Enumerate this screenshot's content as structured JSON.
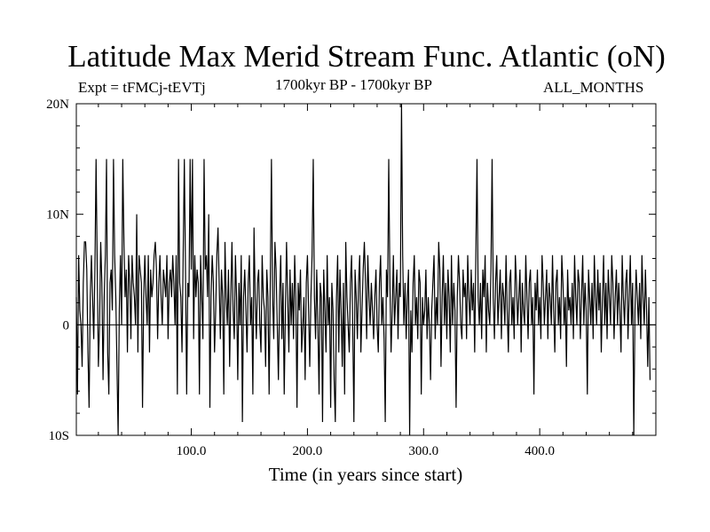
{
  "chart_data": {
    "type": "line",
    "title": "Latitude Max Merid Stream Func. Atlantic (oN)",
    "subtitle_left": "Expt = tFMCj-tEVTj",
    "subtitle_center": "1700kyr BP - 1700kyr BP",
    "subtitle_right": "ALL_MONTHS",
    "xlabel": "Time (in years since start)",
    "ylabel": "",
    "xlim": [
      1,
      500
    ],
    "ylim": [
      -10,
      20
    ],
    "x_ticks": [
      {
        "value": 100,
        "label": "100.0"
      },
      {
        "value": 200,
        "label": "200.0"
      },
      {
        "value": 300,
        "label": "300.0"
      },
      {
        "value": 400,
        "label": "400.0"
      }
    ],
    "y_ticks": [
      {
        "value": -10,
        "label": "10S"
      },
      {
        "value": 0,
        "label": "0"
      },
      {
        "value": 10,
        "label": "10N"
      },
      {
        "value": 20,
        "label": "20N"
      }
    ],
    "zero_line": true,
    "grid": false,
    "series": [
      {
        "name": "",
        "color": "#000000",
        "x_start": 1,
        "x_step": 1,
        "values": [
          2.5,
          -6.3,
          6.3,
          1.3,
          0,
          -3.8,
          3.8,
          7.5,
          7.5,
          5,
          -2.5,
          -7.5,
          2.5,
          6.3,
          2.5,
          -1.3,
          5,
          15,
          5,
          -3.8,
          0,
          7.5,
          3.8,
          -5,
          2.5,
          6.3,
          15,
          -2.5,
          -6.3,
          3.8,
          5,
          1.3,
          15,
          6.3,
          2.5,
          -3.8,
          -10,
          1.3,
          6.3,
          0,
          15,
          7.5,
          2.5,
          5,
          -2.5,
          6.3,
          3.8,
          -1.3,
          6.3,
          3.8,
          2.5,
          0,
          10,
          -2.5,
          6.3,
          5,
          3.8,
          -7.5,
          2.5,
          6.3,
          2.5,
          0,
          6.3,
          -2.5,
          5,
          2.5,
          3.8,
          6.3,
          7.5,
          5,
          -1.3,
          3.8,
          6.3,
          2.5,
          0,
          5,
          3.8,
          2.5,
          6.3,
          -1.3,
          3.8,
          5,
          2.5,
          6.3,
          3.8,
          0,
          6.3,
          -6.3,
          15,
          3.8,
          2.5,
          -2.5,
          6.3,
          15,
          5,
          -6.3,
          3.8,
          2.5,
          15,
          5,
          15,
          -1.3,
          6.3,
          2.5,
          5,
          3.8,
          -6.3,
          6.3,
          2.5,
          -1.3,
          15,
          5,
          6.3,
          2.5,
          10,
          -7.5,
          2.5,
          6.3,
          3.8,
          -2.5,
          1.3,
          6.3,
          8.8,
          3.8,
          -1.3,
          5,
          2.5,
          -6.3,
          7.5,
          2.5,
          0,
          5,
          -3.8,
          2.5,
          7.5,
          1.3,
          -1.3,
          6.3,
          2.5,
          -5,
          3.8,
          0,
          6.3,
          -8.8,
          2.5,
          5,
          1.3,
          -2.5,
          3.8,
          6.3,
          0,
          2.5,
          -6.3,
          8.8,
          2.5,
          -1.3,
          3.8,
          5,
          0,
          -2.5,
          6.3,
          2.5,
          1.3,
          -3.8,
          5,
          2.5,
          -6.3,
          3.8,
          15,
          2.5,
          -1.3,
          7.5,
          5,
          0,
          -5,
          2.5,
          6.3,
          -1.3,
          3.8,
          -6.3,
          1.3,
          7.5,
          2.5,
          -2.5,
          5,
          0,
          3.8,
          -1.3,
          6.3,
          2.5,
          -7.5,
          3.8,
          1.3,
          5,
          -2.5,
          0,
          2.5,
          -5,
          3.8,
          6.3,
          1.3,
          -3.8,
          2.5,
          6.3,
          15,
          2.5,
          -1.3,
          5,
          0,
          -6.3,
          3.8,
          2.5,
          -8.8,
          5,
          1.3,
          -2.5,
          6.3,
          0,
          2.5,
          -7.5,
          3.8,
          1.3,
          -5,
          -8.8,
          2.5,
          6.3,
          -2.5,
          5,
          1.3,
          -3.8,
          3.8,
          -6.3,
          7.5,
          2.5,
          0,
          -2.5,
          3.8,
          6.3,
          0,
          -8.8,
          5,
          2.5,
          -1.3,
          3.8,
          6.3,
          -2.5,
          1.3,
          5,
          7.5,
          3.8,
          -1.3,
          6.3,
          2.5,
          0,
          3.8,
          1.3,
          -1.3,
          2.5,
          5,
          0,
          -2.5,
          3.8,
          6.3,
          0,
          2.5,
          -1.3,
          -8.8,
          5,
          2.5,
          15,
          3.8,
          -2.5,
          1.3,
          6.3,
          0,
          2.5,
          5,
          -1.3,
          3.8,
          2.5,
          20,
          6.3,
          0,
          3.8,
          -1.3,
          2.5,
          5,
          -10,
          1.3,
          -2.5,
          3.8,
          6.3,
          0,
          2.5,
          -1.3,
          5,
          3.8,
          -6.3,
          2.5,
          0,
          1.3,
          5,
          -1.3,
          2.5,
          0,
          -5,
          1.3,
          3.8,
          6.3,
          -1.3,
          2.5,
          0,
          7.5,
          5,
          -3.8,
          2.5,
          6.3,
          0,
          3.8,
          -1.3,
          5,
          2.5,
          -2.5,
          6.3,
          0,
          3.8,
          1.3,
          -7.5,
          2.5,
          6.3,
          3.8,
          0,
          -1.3,
          5,
          2.5,
          3.8,
          -1.3,
          6.3,
          2.5,
          0,
          5,
          1.3,
          3.8,
          -2.5,
          6.3,
          15,
          2.5,
          0,
          3.8,
          -1.3,
          5,
          2.5,
          6.3,
          -2.5,
          3.8,
          1.3,
          0,
          5,
          15,
          2.5,
          -1.3,
          3.8,
          6.3,
          0,
          2.5,
          5,
          -1.3,
          3.8,
          2.5,
          0,
          6.3,
          1.3,
          -2.5,
          3.8,
          5,
          0,
          2.5,
          -1.3,
          6.3,
          3.8,
          0,
          2.5,
          5,
          -2.5,
          3.8,
          1.3,
          0,
          6.3,
          2.5,
          -1.3,
          3.8,
          5,
          0,
          2.5,
          -6.3,
          3.8,
          1.3,
          5,
          0,
          2.5,
          -1.3,
          6.3,
          3.8,
          0,
          2.5,
          5,
          -1.3,
          3.8,
          2.5,
          0,
          6.3,
          1.3,
          -2.5,
          3.8,
          5,
          0,
          2.5,
          -1.3,
          6.3,
          3.8,
          0,
          2.5,
          -3.8,
          5,
          1.3,
          2.5,
          0,
          3.8,
          -1.3,
          6.3,
          2.5,
          0,
          5,
          3.8,
          -1.3,
          2.5,
          6.3,
          0,
          3.8,
          1.3,
          -6.3,
          5,
          2.5,
          0,
          3.8,
          -1.3,
          6.3,
          2.5,
          0,
          5,
          1.3,
          3.8,
          -2.5,
          2.5,
          6.3,
          0,
          3.8,
          -1.3,
          5,
          2.5,
          0,
          6.3,
          3.8,
          -1.3,
          2.5,
          5,
          0,
          3.8,
          1.3,
          -2.5,
          6.3,
          2.5,
          0,
          3.8,
          5,
          -1.3,
          2.5,
          6.3,
          0,
          3.8,
          -10,
          1.3,
          5,
          2.5,
          0,
          3.8,
          -1.3,
          6.3,
          2.5,
          0,
          5,
          1.3,
          -3.8,
          2.5,
          -5
        ]
      }
    ]
  }
}
